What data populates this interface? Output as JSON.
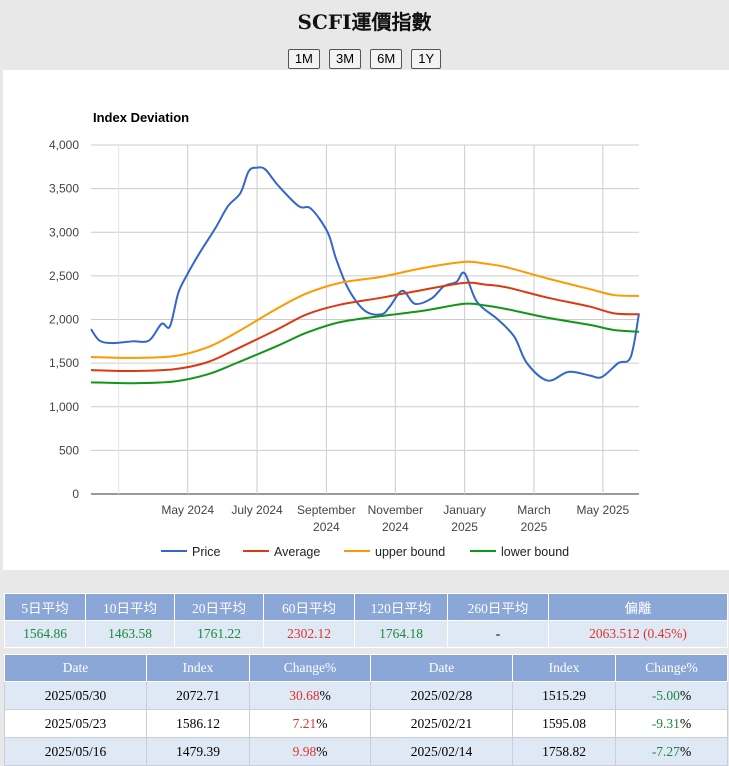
{
  "page": {
    "title": "SCFI運價指數"
  },
  "range_buttons": [
    "1M",
    "3M",
    "6M",
    "1Y"
  ],
  "chart_data": {
    "type": "line",
    "title": "Index Deviation",
    "ylim": [
      0,
      4000
    ],
    "yticks": [
      "4,000",
      "3,500",
      "3,000",
      "2,500",
      "2,000",
      "1,500",
      "1,000",
      "500",
      "0"
    ],
    "xticks": [
      {
        "x": 2024.333,
        "l1": "May 2024",
        "l2": ""
      },
      {
        "x": 2024.5,
        "l1": "July 2024",
        "l2": ""
      },
      {
        "x": 2024.667,
        "l1": "September",
        "l2": "2024"
      },
      {
        "x": 2024.833,
        "l1": "November",
        "l2": "2024"
      },
      {
        "x": 2025.0,
        "l1": "January",
        "l2": "2025"
      },
      {
        "x": 2025.167,
        "l1": "March",
        "l2": "2025"
      },
      {
        "x": 2025.333,
        "l1": "May 2025",
        "l2": ""
      }
    ],
    "xlim": [
      2024.1,
      2025.42
    ],
    "grid": true,
    "legend_position": "bottom",
    "series": [
      {
        "name": "Price",
        "color": "#3366cc",
        "x": [
          2024.1,
          2024.12,
          2024.15,
          2024.2,
          2024.24,
          2024.27,
          2024.29,
          2024.31,
          2024.33,
          2024.36,
          2024.4,
          2024.43,
          2024.46,
          2024.48,
          2024.5,
          2024.52,
          2024.55,
          2024.6,
          2024.63,
          2024.67,
          2024.69,
          2024.72,
          2024.76,
          2024.8,
          2024.82,
          2024.85,
          2024.88,
          2024.92,
          2024.95,
          2024.98,
          2025.0,
          2025.03,
          2025.08,
          2025.12,
          2025.15,
          2025.2,
          2025.25,
          2025.3,
          2025.33,
          2025.37,
          2025.4,
          2025.42
        ],
        "values": [
          1890,
          1760,
          1730,
          1750,
          1760,
          1950,
          1920,
          2300,
          2500,
          2750,
          3050,
          3300,
          3450,
          3700,
          3740,
          3720,
          3540,
          3300,
          3270,
          3000,
          2700,
          2350,
          2100,
          2060,
          2150,
          2330,
          2180,
          2240,
          2380,
          2430,
          2530,
          2200,
          2000,
          1800,
          1500,
          1300,
          1400,
          1360,
          1340,
          1500,
          1570,
          2070
        ]
      },
      {
        "name": "Average",
        "color": "#dc3912",
        "x": [
          2024.1,
          2024.2,
          2024.3,
          2024.38,
          2024.45,
          2024.55,
          2024.62,
          2024.7,
          2024.8,
          2024.9,
          2025.0,
          2025.05,
          2025.1,
          2025.2,
          2025.3,
          2025.36,
          2025.42
        ],
        "values": [
          1420,
          1410,
          1430,
          1510,
          1660,
          1890,
          2060,
          2170,
          2250,
          2340,
          2420,
          2400,
          2370,
          2250,
          2150,
          2070,
          2060
        ]
      },
      {
        "name": "upper bound",
        "color": "#ff9900",
        "x": [
          2024.1,
          2024.2,
          2024.3,
          2024.38,
          2024.45,
          2024.55,
          2024.62,
          2024.7,
          2024.8,
          2024.9,
          2025.0,
          2025.05,
          2025.1,
          2025.2,
          2025.3,
          2025.36,
          2025.42
        ],
        "values": [
          1570,
          1560,
          1580,
          1680,
          1850,
          2130,
          2300,
          2420,
          2490,
          2590,
          2660,
          2640,
          2600,
          2470,
          2350,
          2280,
          2270
        ]
      },
      {
        "name": "lower bound",
        "color": "#109618",
        "x": [
          2024.1,
          2024.2,
          2024.3,
          2024.38,
          2024.45,
          2024.55,
          2024.62,
          2024.7,
          2024.8,
          2024.9,
          2025.0,
          2025.05,
          2025.1,
          2025.2,
          2025.3,
          2025.36,
          2025.42
        ],
        "values": [
          1280,
          1270,
          1290,
          1370,
          1500,
          1700,
          1850,
          1970,
          2040,
          2100,
          2180,
          2160,
          2120,
          2020,
          1940,
          1880,
          1860
        ]
      }
    ]
  },
  "stats": {
    "headers": [
      "5日平均",
      "10日平均",
      "20日平均",
      "60日平均",
      "120日平均",
      "260日平均",
      "偏離"
    ],
    "values": [
      "1564.86",
      "1463.58",
      "1761.22",
      "2302.12",
      "1764.18",
      "-",
      "2063.512 (0.45%)"
    ],
    "colors": [
      "green",
      "green",
      "green",
      "red",
      "green",
      "",
      "red"
    ]
  },
  "history": {
    "headers": [
      "Date",
      "Index",
      "Change%",
      "Date",
      "Index",
      "Change%"
    ],
    "rows": [
      {
        "d1": "2025/05/30",
        "i1": "2072.71",
        "c1": "30.68",
        "c1c": "red",
        "d2": "2025/02/28",
        "i2": "1515.29",
        "c2": "-5.00",
        "c2c": "green"
      },
      {
        "d1": "2025/05/23",
        "i1": "1586.12",
        "c1": "7.21",
        "c1c": "red",
        "d2": "2025/02/21",
        "i2": "1595.08",
        "c2": "-9.31",
        "c2c": "green"
      },
      {
        "d1": "2025/05/16",
        "i1": "1479.39",
        "c1": "9.98",
        "c1c": "red",
        "d2": "2025/02/14",
        "i2": "1758.82",
        "c2": "-7.27",
        "c2c": "green"
      }
    ],
    "percent_sign": "%"
  }
}
